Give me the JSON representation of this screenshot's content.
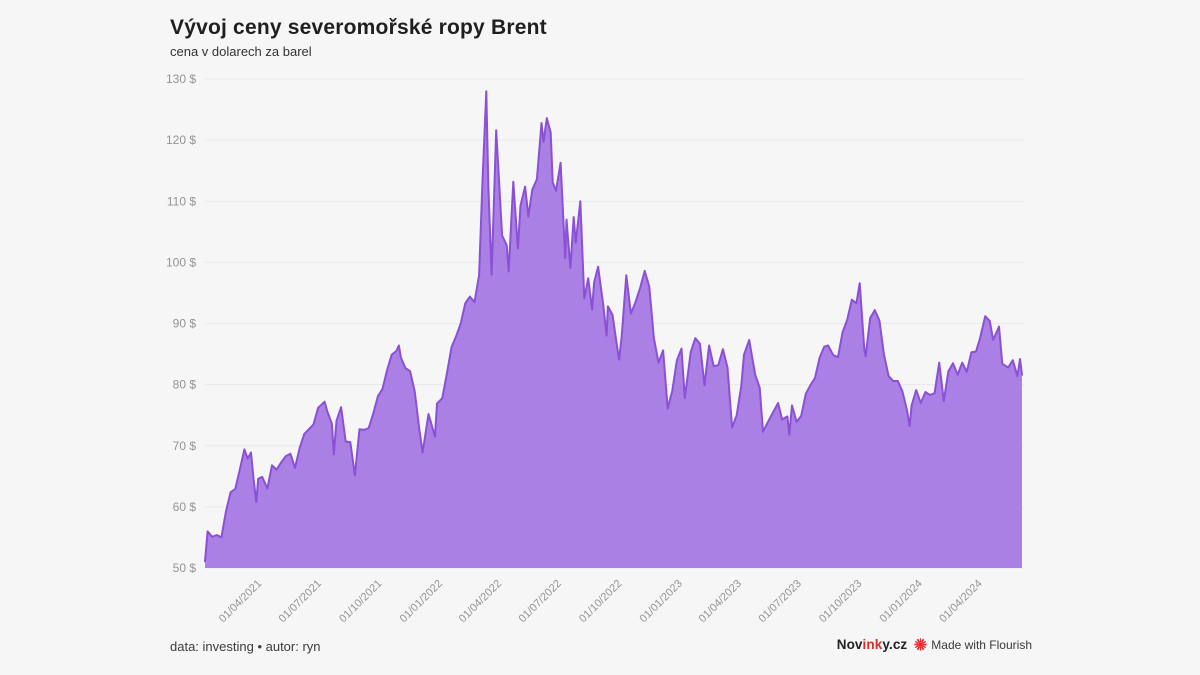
{
  "header": {
    "title": "Vývoj ceny severomořské ropy Brent",
    "subtitle": "cena v dolarech za barel"
  },
  "footer": {
    "credit": "data: investing • autor: ryn",
    "brand": {
      "prefix": "Nov",
      "highlight": "ink",
      "suffix": "y.cz"
    },
    "flourish_icon": "flourish-starburst-icon",
    "flourish_label": "Made with Flourish"
  },
  "colors": {
    "background": "#f6f6f6",
    "area_fill": "#ab80e5",
    "line": "#8a50d6",
    "grid": "#e9e9e9",
    "axis_text": "#949494",
    "title": "#1f1f1f",
    "footer_text": "#3c3c3c",
    "brand_red": "#d32f2f",
    "flourish_red": "#e12b2b"
  },
  "chart_data": {
    "type": "area",
    "title": "Vývoj ceny severomořské ropy Brent",
    "subtitle": "cena v dolarech za barel",
    "xlabel": "",
    "ylabel": "",
    "ylim": [
      50,
      130
    ],
    "grid": "horizontal",
    "legend": "none",
    "y_ticks": [
      {
        "value": 50,
        "label": "50 $"
      },
      {
        "value": 60,
        "label": "60 $"
      },
      {
        "value": 70,
        "label": "70 $"
      },
      {
        "value": 80,
        "label": "80 $"
      },
      {
        "value": 90,
        "label": "90 $"
      },
      {
        "value": 100,
        "label": "100 $"
      },
      {
        "value": 110,
        "label": "110 $"
      },
      {
        "value": 120,
        "label": "120 $"
      },
      {
        "value": 130,
        "label": "130 $"
      }
    ],
    "x_ticks": [
      "01/04/2021",
      "01/07/2021",
      "01/10/2021",
      "01/01/2022",
      "01/04/2022",
      "01/07/2022",
      "01/10/2022",
      "01/01/2023",
      "01/04/2023",
      "01/07/2023",
      "01/10/2023",
      "01/01/2024",
      "01/04/2024"
    ],
    "x_range": [
      "2021-01-04",
      "2024-05-31"
    ],
    "series": [
      {
        "name": "Brent (USD/barel)",
        "points": [
          [
            "2021-01-04",
            51.1
          ],
          [
            "2021-01-08",
            55.99
          ],
          [
            "2021-01-15",
            55.1
          ],
          [
            "2021-01-22",
            55.4
          ],
          [
            "2021-01-29",
            55.0
          ],
          [
            "2021-02-05",
            59.3
          ],
          [
            "2021-02-12",
            62.4
          ],
          [
            "2021-02-19",
            62.9
          ],
          [
            "2021-02-26",
            66.1
          ],
          [
            "2021-03-05",
            69.4
          ],
          [
            "2021-03-10",
            67.9
          ],
          [
            "2021-03-15",
            68.9
          ],
          [
            "2021-03-19",
            64.5
          ],
          [
            "2021-03-23",
            60.8
          ],
          [
            "2021-03-26",
            64.6
          ],
          [
            "2021-04-01",
            64.9
          ],
          [
            "2021-04-09",
            63.0
          ],
          [
            "2021-04-16",
            66.8
          ],
          [
            "2021-04-23",
            66.1
          ],
          [
            "2021-04-30",
            67.3
          ],
          [
            "2021-05-07",
            68.3
          ],
          [
            "2021-05-14",
            68.7
          ],
          [
            "2021-05-21",
            66.4
          ],
          [
            "2021-05-28",
            69.6
          ],
          [
            "2021-06-04",
            71.9
          ],
          [
            "2021-06-11",
            72.7
          ],
          [
            "2021-06-18",
            73.5
          ],
          [
            "2021-06-25",
            76.2
          ],
          [
            "2021-07-05",
            77.2
          ],
          [
            "2021-07-09",
            75.6
          ],
          [
            "2021-07-16",
            73.6
          ],
          [
            "2021-07-19",
            68.6
          ],
          [
            "2021-07-23",
            74.1
          ],
          [
            "2021-07-30",
            76.3
          ],
          [
            "2021-08-06",
            70.7
          ],
          [
            "2021-08-13",
            70.6
          ],
          [
            "2021-08-20",
            65.2
          ],
          [
            "2021-08-27",
            72.7
          ],
          [
            "2021-09-03",
            72.6
          ],
          [
            "2021-09-10",
            72.9
          ],
          [
            "2021-09-17",
            75.3
          ],
          [
            "2021-09-24",
            78.1
          ],
          [
            "2021-10-01",
            79.3
          ],
          [
            "2021-10-08",
            82.4
          ],
          [
            "2021-10-15",
            84.9
          ],
          [
            "2021-10-22",
            85.5
          ],
          [
            "2021-10-26",
            86.4
          ],
          [
            "2021-10-29",
            84.4
          ],
          [
            "2021-11-05",
            82.7
          ],
          [
            "2021-11-12",
            82.2
          ],
          [
            "2021-11-19",
            78.9
          ],
          [
            "2021-11-26",
            72.7
          ],
          [
            "2021-12-01",
            68.9
          ],
          [
            "2021-12-10",
            75.2
          ],
          [
            "2021-12-20",
            71.5
          ],
          [
            "2021-12-23",
            76.9
          ],
          [
            "2021-12-31",
            77.8
          ],
          [
            "2022-01-07",
            81.8
          ],
          [
            "2022-01-14",
            86.1
          ],
          [
            "2022-01-21",
            87.9
          ],
          [
            "2022-01-28",
            90.0
          ],
          [
            "2022-02-04",
            93.3
          ],
          [
            "2022-02-11",
            94.4
          ],
          [
            "2022-02-18",
            93.5
          ],
          [
            "2022-02-25",
            97.9
          ],
          [
            "2022-03-02",
            112.9
          ],
          [
            "2022-03-08",
            127.98
          ],
          [
            "2022-03-11",
            112.7
          ],
          [
            "2022-03-16",
            98.0
          ],
          [
            "2022-03-23",
            121.6
          ],
          [
            "2022-03-29",
            110.2
          ],
          [
            "2022-04-01",
            104.4
          ],
          [
            "2022-04-08",
            102.8
          ],
          [
            "2022-04-11",
            98.5
          ],
          [
            "2022-04-18",
            113.2
          ],
          [
            "2022-04-25",
            102.3
          ],
          [
            "2022-04-29",
            109.3
          ],
          [
            "2022-05-06",
            112.4
          ],
          [
            "2022-05-11",
            107.5
          ],
          [
            "2022-05-17",
            111.9
          ],
          [
            "2022-05-24",
            113.6
          ],
          [
            "2022-05-31",
            122.8
          ],
          [
            "2022-06-03",
            119.7
          ],
          [
            "2022-06-08",
            123.6
          ],
          [
            "2022-06-14",
            121.2
          ],
          [
            "2022-06-17",
            113.1
          ],
          [
            "2022-06-22",
            111.7
          ],
          [
            "2022-06-29",
            116.3
          ],
          [
            "2022-07-06",
            100.7
          ],
          [
            "2022-07-08",
            107.0
          ],
          [
            "2022-07-14",
            99.1
          ],
          [
            "2022-07-19",
            107.4
          ],
          [
            "2022-07-22",
            103.2
          ],
          [
            "2022-07-29",
            110.0
          ],
          [
            "2022-08-04",
            94.1
          ],
          [
            "2022-08-10",
            97.4
          ],
          [
            "2022-08-16",
            92.3
          ],
          [
            "2022-08-19",
            96.7
          ],
          [
            "2022-08-25",
            99.3
          ],
          [
            "2022-09-02",
            93.0
          ],
          [
            "2022-09-07",
            88.0
          ],
          [
            "2022-09-09",
            92.8
          ],
          [
            "2022-09-16",
            91.4
          ],
          [
            "2022-09-23",
            86.2
          ],
          [
            "2022-09-26",
            84.1
          ],
          [
            "2022-09-30",
            87.9
          ],
          [
            "2022-10-07",
            97.9
          ],
          [
            "2022-10-14",
            91.6
          ],
          [
            "2022-10-21",
            93.5
          ],
          [
            "2022-10-28",
            95.8
          ],
          [
            "2022-11-04",
            98.6
          ],
          [
            "2022-11-11",
            96.0
          ],
          [
            "2022-11-18",
            87.6
          ],
          [
            "2022-11-25",
            83.6
          ],
          [
            "2022-12-02",
            85.6
          ],
          [
            "2022-12-09",
            76.1
          ],
          [
            "2022-12-16",
            79.0
          ],
          [
            "2022-12-23",
            84.0
          ],
          [
            "2022-12-30",
            85.9
          ],
          [
            "2023-01-04",
            77.8
          ],
          [
            "2023-01-13",
            85.3
          ],
          [
            "2023-01-20",
            87.6
          ],
          [
            "2023-01-27",
            86.7
          ],
          [
            "2023-02-03",
            79.9
          ],
          [
            "2023-02-10",
            86.4
          ],
          [
            "2023-02-17",
            83.0
          ],
          [
            "2023-02-24",
            83.2
          ],
          [
            "2023-03-03",
            85.8
          ],
          [
            "2023-03-10",
            82.8
          ],
          [
            "2023-03-17",
            73.0
          ],
          [
            "2023-03-24",
            75.0
          ],
          [
            "2023-03-31",
            79.8
          ],
          [
            "2023-04-04",
            84.9
          ],
          [
            "2023-04-12",
            87.3
          ],
          [
            "2023-04-21",
            81.7
          ],
          [
            "2023-04-28",
            79.5
          ],
          [
            "2023-05-03",
            72.3
          ],
          [
            "2023-05-12",
            74.2
          ],
          [
            "2023-05-19",
            75.6
          ],
          [
            "2023-05-26",
            77.0
          ],
          [
            "2023-06-01",
            74.3
          ],
          [
            "2023-06-09",
            74.8
          ],
          [
            "2023-06-12",
            71.8
          ],
          [
            "2023-06-16",
            76.6
          ],
          [
            "2023-06-23",
            73.9
          ],
          [
            "2023-06-30",
            74.9
          ],
          [
            "2023-07-07",
            78.5
          ],
          [
            "2023-07-14",
            79.9
          ],
          [
            "2023-07-21",
            81.1
          ],
          [
            "2023-07-28",
            84.4
          ],
          [
            "2023-08-04",
            86.2
          ],
          [
            "2023-08-10",
            86.4
          ],
          [
            "2023-08-18",
            84.8
          ],
          [
            "2023-08-25",
            84.5
          ],
          [
            "2023-09-01",
            88.6
          ],
          [
            "2023-09-08",
            90.6
          ],
          [
            "2023-09-15",
            93.9
          ],
          [
            "2023-09-22",
            93.3
          ],
          [
            "2023-09-27",
            96.6
          ],
          [
            "2023-10-04",
            85.8
          ],
          [
            "2023-10-06",
            84.6
          ],
          [
            "2023-10-13",
            90.9
          ],
          [
            "2023-10-20",
            92.2
          ],
          [
            "2023-10-27",
            90.5
          ],
          [
            "2023-11-03",
            84.9
          ],
          [
            "2023-11-10",
            81.4
          ],
          [
            "2023-11-17",
            80.6
          ],
          [
            "2023-11-24",
            80.6
          ],
          [
            "2023-12-01",
            78.9
          ],
          [
            "2023-12-08",
            75.8
          ],
          [
            "2023-12-12",
            73.2
          ],
          [
            "2023-12-15",
            76.6
          ],
          [
            "2023-12-22",
            79.1
          ],
          [
            "2023-12-29",
            77.0
          ],
          [
            "2024-01-05",
            78.8
          ],
          [
            "2024-01-12",
            78.3
          ],
          [
            "2024-01-19",
            78.6
          ],
          [
            "2024-01-26",
            83.6
          ],
          [
            "2024-02-02",
            77.3
          ],
          [
            "2024-02-09",
            82.2
          ],
          [
            "2024-02-16",
            83.5
          ],
          [
            "2024-02-23",
            81.6
          ],
          [
            "2024-03-01",
            83.6
          ],
          [
            "2024-03-08",
            82.1
          ],
          [
            "2024-03-15",
            85.3
          ],
          [
            "2024-03-22",
            85.4
          ],
          [
            "2024-03-28",
            87.5
          ],
          [
            "2024-04-05",
            91.2
          ],
          [
            "2024-04-12",
            90.4
          ],
          [
            "2024-04-17",
            87.3
          ],
          [
            "2024-04-26",
            89.5
          ],
          [
            "2024-05-01",
            83.4
          ],
          [
            "2024-05-10",
            82.8
          ],
          [
            "2024-05-17",
            84.0
          ],
          [
            "2024-05-24",
            81.4
          ],
          [
            "2024-05-28",
            84.2
          ],
          [
            "2024-05-31",
            81.6
          ]
        ]
      }
    ]
  }
}
